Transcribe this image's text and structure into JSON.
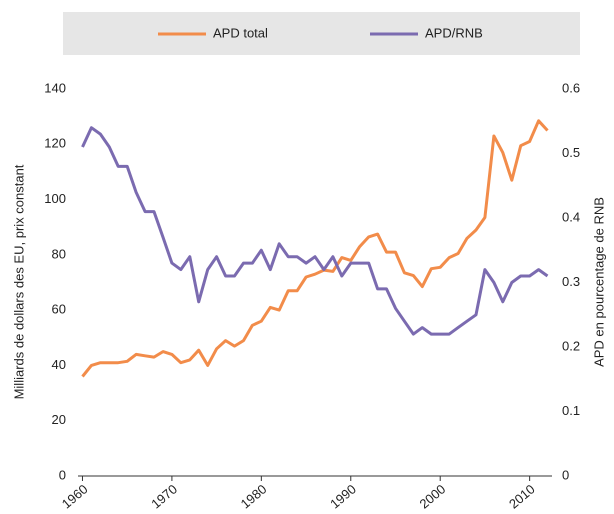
{
  "chart_data": {
    "type": "line",
    "x": [
      1960,
      1961,
      1962,
      1963,
      1964,
      1965,
      1966,
      1967,
      1968,
      1969,
      1970,
      1971,
      1972,
      1973,
      1974,
      1975,
      1976,
      1977,
      1978,
      1979,
      1980,
      1981,
      1982,
      1983,
      1984,
      1985,
      1986,
      1987,
      1988,
      1989,
      1990,
      1991,
      1992,
      1993,
      1994,
      1995,
      1996,
      1997,
      1998,
      1999,
      2000,
      2001,
      2002,
      2003,
      2004,
      2005,
      2006,
      2007,
      2008,
      2009,
      2010,
      2011,
      2012
    ],
    "series": [
      {
        "name": "APD total",
        "color": "#f28c4a",
        "axis": "y",
        "values": [
          36,
          40,
          41,
          41,
          41,
          41.5,
          44,
          43.5,
          43,
          45,
          44,
          41,
          42,
          45.5,
          40,
          46,
          49,
          47,
          49,
          54.5,
          56,
          61,
          60,
          67,
          67,
          72,
          73,
          74.5,
          74,
          79,
          78,
          83,
          86.5,
          87.5,
          81,
          81,
          73.5,
          72.5,
          68.5,
          75,
          75.5,
          79,
          80.5,
          86,
          89,
          93.5,
          123,
          117,
          107,
          119.5,
          121,
          128.5,
          125
        ]
      },
      {
        "name": "APD/RNB",
        "color": "#7b6bb0",
        "axis": "y2",
        "values": [
          0.51,
          0.54,
          0.53,
          0.51,
          0.48,
          0.48,
          0.44,
          0.41,
          0.41,
          0.37,
          0.33,
          0.32,
          0.34,
          0.27,
          0.32,
          0.34,
          0.31,
          0.31,
          0.33,
          0.33,
          0.35,
          0.32,
          0.36,
          0.34,
          0.34,
          0.33,
          0.34,
          0.32,
          0.34,
          0.31,
          0.33,
          0.33,
          0.33,
          0.29,
          0.29,
          0.26,
          0.24,
          0.22,
          0.23,
          0.22,
          0.22,
          0.22,
          0.23,
          0.24,
          0.25,
          0.32,
          0.3,
          0.27,
          0.3,
          0.31,
          0.31,
          0.32,
          0.31
        ]
      }
    ],
    "ylabel": "Milliards de dollars des EU, prix constant",
    "y2label": "APD en pourcentage de RNB",
    "xlim": [
      1959.5,
      2012.5
    ],
    "xticks": [
      1960,
      1970,
      1980,
      1990,
      2000,
      2010
    ],
    "ylim": [
      0,
      140
    ],
    "yticks": [
      0,
      20,
      40,
      60,
      80,
      100,
      120,
      140
    ],
    "y2lim": [
      0,
      0.6
    ],
    "y2ticks": [
      0,
      0.1,
      0.2,
      0.3,
      0.4,
      0.5,
      0.6
    ],
    "legend": "top"
  }
}
